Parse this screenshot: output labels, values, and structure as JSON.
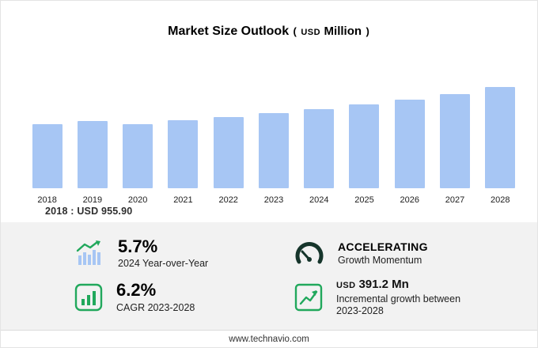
{
  "title": {
    "main": "Market Size Outlook",
    "paren_open": "(",
    "unit_currency": "USD",
    "unit_label": "Million",
    "paren_close": ")"
  },
  "chart_data": {
    "type": "bar",
    "title": "Market Size Outlook (USD Million)",
    "categories": [
      "2018",
      "2019",
      "2020",
      "2021",
      "2022",
      "2023",
      "2024",
      "2025",
      "2026",
      "2027",
      "2028"
    ],
    "values": [
      955.9,
      1003,
      958,
      1014,
      1063,
      1115.5,
      1179.1,
      1246,
      1317,
      1398,
      1506.7
    ],
    "ylim": [
      0,
      1600
    ],
    "xlabel": "",
    "ylabel": "",
    "grid": false,
    "legend": "none"
  },
  "baseline": {
    "text": "2018 : USD  955.90"
  },
  "stats": {
    "yoy": {
      "value": "5.7%",
      "label": "2024 Year-over-Year"
    },
    "momentum": {
      "value": "ACCELERATING",
      "label": "Growth Momentum"
    },
    "cagr": {
      "value": "6.2%",
      "label": "CAGR 2023-2028"
    },
    "incremental": {
      "currency": "USD",
      "value": "391.2 Mn",
      "label": "Incremental growth between 2023-2028"
    }
  },
  "footer": {
    "url": "www.technavio.com"
  },
  "colors": {
    "bar": "#a7c6f4",
    "green": "#21a85c",
    "gauge": "#16352b",
    "stats_bg": "#f2f2f2"
  }
}
